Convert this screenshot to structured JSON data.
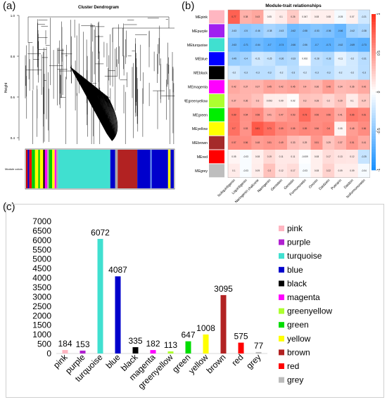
{
  "panels": {
    "a": "(a)",
    "b": "(b)",
    "c": "(c)"
  },
  "dendrogram": {
    "title": "Cluster Dendrogram",
    "ylabel": "Height",
    "yticks": [
      "1.0",
      "0.8",
      "0.6",
      "0.4"
    ],
    "colorbar_label": "Module colors",
    "colorbar": [
      [
        "#cc0000",
        1.0
      ],
      [
        "#0000cc",
        1.0
      ],
      [
        "#ff0000",
        1.5
      ],
      [
        "#00cc00",
        2.0
      ],
      [
        "#ffff00",
        2.0
      ],
      [
        "#00cc00",
        1.0
      ],
      [
        "#ffff00",
        2.0
      ],
      [
        "#000000",
        1.0
      ],
      [
        "#ff00ff",
        1.5
      ],
      [
        "#aaaaaa",
        1.0
      ],
      [
        "#00cc00",
        2.0
      ],
      [
        "#ffff00",
        1.5
      ],
      [
        "#ff00ff",
        1.0
      ],
      [
        "#aaaaaa",
        1.0
      ],
      [
        "#40e0d0",
        32.0
      ],
      [
        "#0000cc",
        3.0
      ],
      [
        "#aaaaaa",
        1.5
      ],
      [
        "#b22222",
        12.0
      ],
      [
        "#0000cc",
        8.0
      ],
      [
        "#6495ed",
        0.8
      ],
      [
        "#0000cc",
        10.0
      ],
      [
        "#ffff00",
        1.5
      ],
      [
        "#0000cc",
        2.0
      ]
    ]
  },
  "heatmap": {
    "title": "Module-trait relationships",
    "modules": [
      "MEpink",
      "MEpurple",
      "MEturquoise",
      "MEblue",
      "MEblack",
      "MEmagenta",
      "MEgreenyellow",
      "MEgreen",
      "MEyellow",
      "MEbrown",
      "MEred",
      "MEgrey"
    ],
    "module_colors": [
      "#ffb6c1",
      "#a020f0",
      "#40e0d0",
      "#0000ff",
      "#000000",
      "#ff00ff",
      "#adff2f",
      "#00ee00",
      "#ffff00",
      "#a52a2a",
      "#ff0000",
      "#bebebe"
    ],
    "traits": [
      "Isoliquiritigenin",
      "Liquiritigenin",
      "Naringenin chalcone",
      "Naringenin",
      "Genistein",
      "Genistin",
      "Formononetin",
      "Ononin",
      "Daidzein",
      "Puerarin",
      "Daidzin",
      "Isoformononetin"
    ],
    "legend_ticks": [
      "1",
      "0.5",
      "0",
      "-0.5",
      "-1"
    ],
    "correlations": [
      [
        0.77,
        0.38,
        0.43,
        0.05,
        0.1,
        0.26,
        0.047,
        0.08,
        0.08,
        -0.05,
        0.07,
        -0.21
      ],
      [
        -0.43,
        -0.5,
        -0.46,
        -0.38,
        -0.43,
        -0.62,
        -0.58,
        -0.53,
        -0.56,
        -0.66,
        -0.42,
        -0.38
      ],
      [
        -0.63,
        -0.71,
        -0.64,
        -0.7,
        -0.74,
        -0.66,
        -0.56,
        -0.7,
        -0.71,
        -0.62,
        -0.69,
        -0.73
      ],
      [
        -0.45,
        -0.4,
        -0.21,
        -0.25,
        -0.36,
        -0.33,
        0.002,
        -0.28,
        -0.33,
        -0.11,
        -0.2,
        -0.31
      ],
      [
        -0.2,
        -0.3,
        -0.3,
        -0.3,
        -0.2,
        -0.3,
        -0.2,
        -0.3,
        -0.3,
        -0.2,
        -0.2,
        -0.3
      ],
      [
        0.42,
        0.37,
        0.37,
        0.45,
        0.42,
        0.45,
        0.4,
        0.36,
        0.48,
        0.34,
        0.36,
        0.42
      ],
      [
        0.37,
        0.36,
        0.3,
        0.093,
        0.09,
        0.02,
        0.3,
        0.28,
        0.2,
        0.29,
        0.1,
        0.27
      ],
      [
        0.69,
        0.54,
        0.58,
        0.41,
        0.47,
        0.53,
        0.73,
        0.56,
        0.56,
        0.41,
        0.66,
        0.61
      ],
      [
        0.7,
        0.53,
        0.81,
        0.71,
        0.59,
        0.55,
        0.59,
        0.56,
        0.6,
        0.05,
        0.48,
        0.56
      ],
      [
        0.57,
        0.56,
        0.48,
        0.51,
        0.49,
        0.33,
        0.29,
        0.51,
        0.29,
        0.37,
        0.51,
        0.41
      ],
      [
        0.05,
        -0.03,
        0.08,
        0.19,
        0.11,
        0.11,
        -0.009,
        0.08,
        0.17,
        0.13,
        0.12,
        -0.25
      ],
      [
        0.1,
        -0.03,
        0.09,
        0.3,
        0.12,
        0.17,
        -0.03,
        0.08,
        0.22,
        0.09,
        0.09,
        -0.04
      ]
    ]
  },
  "chart_data": {
    "type": "bar",
    "categories": [
      "pink",
      "purple",
      "turquoise",
      "blue",
      "black",
      "magenta",
      "greenyellow",
      "green",
      "yellow",
      "brown",
      "red",
      "grey"
    ],
    "values": [
      184,
      153,
      6072,
      4087,
      335,
      182,
      113,
      647,
      1008,
      3095,
      575,
      77
    ],
    "colors": [
      "#ffb6c1",
      "#b020d0",
      "#40e0d0",
      "#0000cc",
      "#000000",
      "#ff00ff",
      "#adff2f",
      "#00dd00",
      "#ffff00",
      "#b22222",
      "#ff0000",
      "#bbbbbb"
    ],
    "yticks": [
      "0",
      "500",
      "1000",
      "1500",
      "2000",
      "2500",
      "3000",
      "3500",
      "4000",
      "4500",
      "5000",
      "5500",
      "6000",
      "6500",
      "7000"
    ],
    "ylim": [
      0,
      7000
    ],
    "legend": [
      "pink",
      "purple",
      "turquoise",
      "blue",
      "black",
      "magenta",
      "greenyellow",
      "green",
      "yellow",
      "brown",
      "red",
      "grey"
    ],
    "legend_position": "right"
  }
}
